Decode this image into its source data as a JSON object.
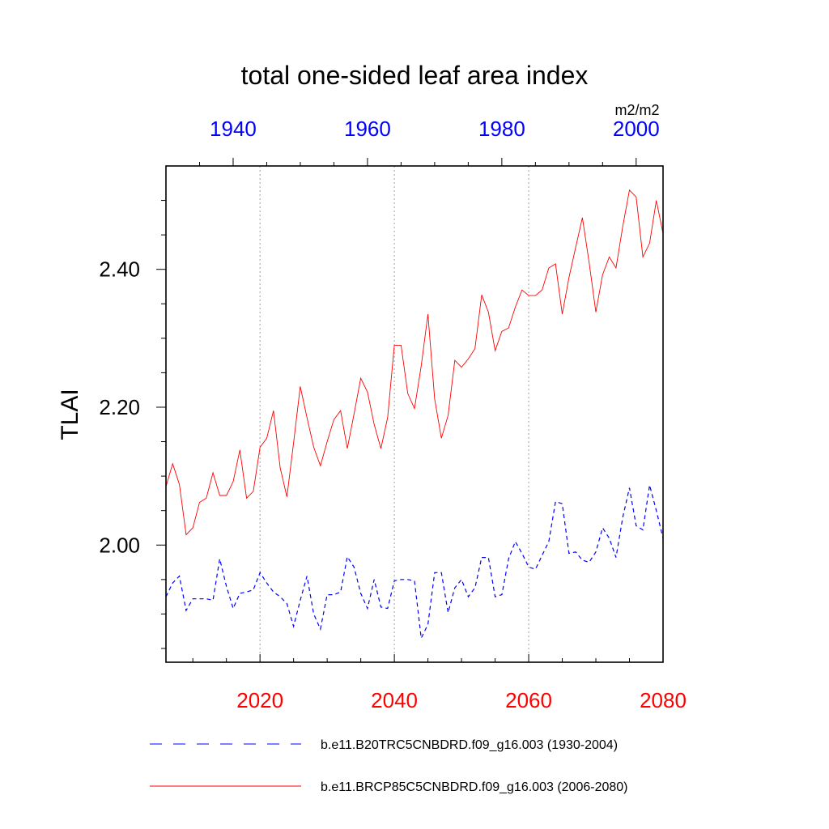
{
  "chart_data": {
    "type": "line",
    "title": "total one-sided leaf area index",
    "ylabel": "TLAI",
    "units": "m2/m2",
    "ylim": [
      1.83,
      2.55
    ],
    "y_ticks": [
      "2.00",
      "2.20",
      "2.40"
    ],
    "x_bottom": {
      "range": [
        2006,
        2080
      ],
      "ticks": [
        "2020",
        "2040",
        "2060",
        "2080"
      ],
      "color": "#ff0000"
    },
    "x_top": {
      "range": [
        1930,
        2004
      ],
      "ticks": [
        "1940",
        "1960",
        "1980",
        "2000"
      ],
      "color": "#0000ff"
    },
    "grid": "vertical dotted at 2020, 2040, 2060",
    "legend_position": "bottom",
    "series": [
      {
        "name": "b.e11.B20TRC5CNBDRD.f09_g16.003 (1930-2004)",
        "axis": "top",
        "color": "#0000ff",
        "dash": "dashed",
        "x": [
          1930,
          1931,
          1932,
          1933,
          1934,
          1935,
          1936,
          1937,
          1938,
          1939,
          1940,
          1941,
          1942,
          1943,
          1944,
          1945,
          1946,
          1947,
          1948,
          1949,
          1950,
          1951,
          1952,
          1953,
          1954,
          1955,
          1956,
          1957,
          1958,
          1959,
          1960,
          1961,
          1962,
          1963,
          1964,
          1965,
          1966,
          1967,
          1968,
          1969,
          1970,
          1971,
          1972,
          1973,
          1974,
          1975,
          1976,
          1977,
          1978,
          1979,
          1980,
          1981,
          1982,
          1983,
          1984,
          1985,
          1986,
          1987,
          1988,
          1989,
          1990,
          1991,
          1992,
          1993,
          1994,
          1995,
          1996,
          1997,
          1998,
          1999,
          2000,
          2001,
          2002,
          2003,
          2004
        ],
        "values": [
          1.925,
          1.945,
          1.955,
          1.905,
          1.922,
          1.922,
          1.922,
          1.92,
          1.98,
          1.94,
          1.908,
          1.93,
          1.932,
          1.935,
          1.96,
          1.945,
          1.932,
          1.925,
          1.915,
          1.882,
          1.92,
          1.955,
          1.9,
          1.878,
          1.928,
          1.928,
          1.932,
          1.983,
          1.968,
          1.93,
          1.908,
          1.95,
          1.91,
          1.908,
          1.948,
          1.95,
          1.95,
          1.948,
          1.865,
          1.885,
          1.96,
          1.96,
          1.902,
          1.938,
          1.95,
          1.925,
          1.938,
          1.982,
          1.982,
          1.925,
          1.928,
          1.98,
          2.005,
          1.988,
          1.968,
          1.965,
          1.985,
          2.005,
          2.063,
          2.06,
          1.988,
          1.99,
          1.978,
          1.975,
          1.99,
          2.025,
          2.01,
          1.982,
          2.04,
          2.083,
          2.028,
          2.022,
          2.087,
          2.05,
          2.01
        ]
      },
      {
        "name": "b.e11.BRCP85C5CNBDRD.f09_g16.003 (2006-2080)",
        "axis": "bottom",
        "color": "#ff0000",
        "dash": "solid",
        "x": [
          2006,
          2007,
          2008,
          2009,
          2010,
          2011,
          2012,
          2013,
          2014,
          2015,
          2016,
          2017,
          2018,
          2019,
          2020,
          2021,
          2022,
          2023,
          2024,
          2025,
          2026,
          2027,
          2028,
          2029,
          2030,
          2031,
          2032,
          2033,
          2034,
          2035,
          2036,
          2037,
          2038,
          2039,
          2040,
          2041,
          2042,
          2043,
          2044,
          2045,
          2046,
          2047,
          2048,
          2049,
          2050,
          2051,
          2052,
          2053,
          2054,
          2055,
          2056,
          2057,
          2058,
          2059,
          2060,
          2061,
          2062,
          2063,
          2064,
          2065,
          2066,
          2067,
          2068,
          2069,
          2070,
          2071,
          2072,
          2073,
          2074,
          2075,
          2076,
          2077,
          2078,
          2079,
          2080
        ],
        "values": [
          2.085,
          2.118,
          2.088,
          2.015,
          2.025,
          2.062,
          2.068,
          2.105,
          2.072,
          2.072,
          2.092,
          2.138,
          2.068,
          2.078,
          2.142,
          2.155,
          2.195,
          2.112,
          2.07,
          2.148,
          2.23,
          2.185,
          2.142,
          2.115,
          2.15,
          2.182,
          2.195,
          2.14,
          2.19,
          2.242,
          2.222,
          2.175,
          2.14,
          2.185,
          2.29,
          2.29,
          2.22,
          2.198,
          2.26,
          2.335,
          2.212,
          2.155,
          2.188,
          2.268,
          2.258,
          2.27,
          2.285,
          2.363,
          2.338,
          2.282,
          2.31,
          2.315,
          2.345,
          2.37,
          2.362,
          2.362,
          2.37,
          2.402,
          2.408,
          2.335,
          2.388,
          2.432,
          2.475,
          2.41,
          2.338,
          2.392,
          2.418,
          2.402,
          2.462,
          2.515,
          2.505,
          2.418,
          2.438,
          2.5,
          2.452
        ]
      }
    ]
  }
}
